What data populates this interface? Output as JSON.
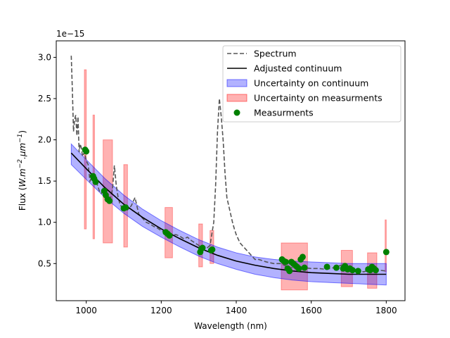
{
  "chart_data": {
    "type": "line",
    "xlabel": "Wavelength (nm)",
    "ylabel_main": "Flux (",
    "ylabel_sym": "W.m",
    "ylabel_sup1": "−2",
    "ylabel_mid": ".µm",
    "ylabel_sup2": "−1",
    "ylabel_end": ")",
    "offset_label": "1e−15",
    "xlim": [
      920,
      1850
    ],
    "ylim": [
      0.05,
      3.2
    ],
    "xticks": [
      1000,
      1200,
      1400,
      1600,
      1800
    ],
    "xtick_labels": [
      "1000",
      "1200",
      "1400",
      "1600",
      "1800"
    ],
    "yticks": [
      0.5,
      1.0,
      1.5,
      2.0,
      2.5,
      3.0
    ],
    "ytick_labels": [
      "0.5",
      "1.0",
      "1.5",
      "2.0",
      "2.5",
      "3.0"
    ],
    "legend": [
      {
        "label": "Spectrum",
        "kind": "dashed",
        "color": "#555555"
      },
      {
        "label": "Adjusted continuum",
        "kind": "line",
        "color": "#000000"
      },
      {
        "label": "Uncertainty on continuum",
        "kind": "patch",
        "color": "#0000ff"
      },
      {
        "label": "Uncertainty on measurments",
        "kind": "patch",
        "color": "#ff0000"
      },
      {
        "label": "Measurments",
        "kind": "marker",
        "color": "#008000"
      }
    ],
    "spectrum": {
      "x": [
        960,
        963,
        966,
        969,
        972,
        975,
        978,
        981,
        984,
        987,
        990,
        995,
        1000,
        1005,
        1010,
        1015,
        1020,
        1025,
        1030,
        1035,
        1040,
        1045,
        1050,
        1055,
        1060,
        1065,
        1070,
        1075,
        1080,
        1085,
        1090,
        1095,
        1100,
        1110,
        1120,
        1130,
        1140,
        1150,
        1160,
        1170,
        1180,
        1190,
        1200,
        1210,
        1220,
        1230,
        1240,
        1250,
        1260,
        1270,
        1280,
        1290,
        1300,
        1310,
        1320,
        1330,
        1340,
        1345,
        1350,
        1355,
        1360,
        1365,
        1370,
        1375,
        1380,
        1385,
        1390,
        1395,
        1400,
        1410,
        1420,
        1430,
        1440,
        1450,
        1460,
        1480,
        1500,
        1520,
        1540,
        1560,
        1580,
        1600,
        1620,
        1640,
        1660,
        1680,
        1700,
        1720,
        1740,
        1760,
        1780,
        1800
      ],
      "y": [
        3.02,
        2.6,
        2.1,
        2.25,
        2.3,
        2.05,
        2.28,
        1.85,
        1.95,
        1.9,
        1.8,
        1.85,
        1.75,
        1.7,
        1.5,
        1.55,
        1.5,
        1.5,
        1.45,
        1.38,
        1.35,
        1.4,
        1.3,
        1.28,
        1.26,
        1.3,
        1.4,
        1.69,
        1.45,
        1.3,
        1.22,
        1.18,
        1.17,
        1.15,
        1.2,
        1.3,
        1.1,
        1.05,
        1.0,
        0.98,
        0.95,
        0.93,
        0.9,
        0.88,
        0.86,
        0.85,
        0.85,
        0.83,
        0.8,
        0.82,
        0.78,
        0.75,
        0.72,
        0.7,
        0.68,
        0.72,
        1.0,
        1.45,
        2.1,
        2.5,
        2.28,
        2.0,
        1.6,
        1.3,
        1.2,
        1.1,
        1.0,
        0.92,
        0.85,
        0.75,
        0.7,
        0.65,
        0.6,
        0.55,
        0.55,
        0.52,
        0.5,
        0.5,
        0.45,
        0.45,
        0.45,
        0.44,
        0.44,
        0.43,
        0.45,
        0.48,
        0.46,
        0.42,
        0.4,
        0.43,
        0.42,
        0.41
      ]
    },
    "continuum": {
      "x": [
        960,
        1000,
        1050,
        1100,
        1150,
        1200,
        1250,
        1300,
        1350,
        1400,
        1450,
        1500,
        1550,
        1600,
        1650,
        1700,
        1750,
        1800
      ],
      "y": [
        1.84,
        1.65,
        1.42,
        1.22,
        1.06,
        0.92,
        0.8,
        0.69,
        0.6,
        0.53,
        0.48,
        0.44,
        0.41,
        0.39,
        0.38,
        0.37,
        0.37,
        0.37
      ],
      "lower": [
        1.7,
        1.52,
        1.3,
        1.11,
        0.95,
        0.82,
        0.7,
        0.59,
        0.5,
        0.43,
        0.37,
        0.33,
        0.3,
        0.28,
        0.27,
        0.26,
        0.25,
        0.24
      ],
      "upper": [
        1.95,
        1.76,
        1.53,
        1.33,
        1.16,
        1.02,
        0.9,
        0.79,
        0.7,
        0.63,
        0.58,
        0.55,
        0.53,
        0.52,
        0.51,
        0.5,
        0.5,
        0.5
      ]
    },
    "measurement_uncertainty": [
      {
        "x": [
          995,
          1000
        ],
        "lower": [
          0.92,
          0.92
        ],
        "upper": [
          2.85,
          2.85
        ]
      },
      {
        "x": [
          1018,
          1022
        ],
        "lower": [
          0.8,
          0.8
        ],
        "upper": [
          2.3,
          2.3
        ]
      },
      {
        "x": [
          1045,
          1070
        ],
        "lower": [
          0.75,
          0.75
        ],
        "upper": [
          2.0,
          2.0
        ]
      },
      {
        "x": [
          1100,
          1110
        ],
        "lower": [
          0.7,
          0.7
        ],
        "upper": [
          1.7,
          1.7
        ]
      },
      {
        "x": [
          1210,
          1230
        ],
        "lower": [
          0.57,
          0.57
        ],
        "upper": [
          1.18,
          1.18
        ]
      },
      {
        "x": [
          1300,
          1310
        ],
        "lower": [
          0.46,
          0.46
        ],
        "upper": [
          0.98,
          0.98
        ]
      },
      {
        "x": [
          1330,
          1340
        ],
        "lower": [
          0.5,
          0.5
        ],
        "upper": [
          0.9,
          0.9
        ]
      },
      {
        "x": [
          1520,
          1590
        ],
        "lower": [
          0.18,
          0.18
        ],
        "upper": [
          0.75,
          0.75
        ]
      },
      {
        "x": [
          1680,
          1710
        ],
        "lower": [
          0.22,
          0.22
        ],
        "upper": [
          0.66,
          0.66
        ]
      },
      {
        "x": [
          1750,
          1775
        ],
        "lower": [
          0.2,
          0.2
        ],
        "upper": [
          0.63,
          0.63
        ]
      },
      {
        "x": [
          1797,
          1800
        ],
        "lower": [
          0.4,
          0.4
        ],
        "upper": [
          1.03,
          1.03
        ]
      }
    ],
    "measurements": {
      "x": [
        997,
        1000,
        1018,
        1021,
        1025,
        1048,
        1052,
        1057,
        1062,
        1100,
        1105,
        1212,
        1217,
        1222,
        1304,
        1307,
        1310,
        1333,
        1336,
        1522,
        1527,
        1532,
        1537,
        1542,
        1547,
        1552,
        1557,
        1562,
        1567,
        1572,
        1577,
        1582,
        1642,
        1667,
        1685,
        1690,
        1697,
        1703,
        1710,
        1725,
        1752,
        1757,
        1762,
        1767,
        1772,
        1800
      ],
      "y": [
        1.88,
        1.86,
        1.56,
        1.53,
        1.49,
        1.38,
        1.33,
        1.28,
        1.26,
        1.17,
        1.18,
        0.88,
        0.86,
        0.84,
        0.64,
        0.68,
        0.69,
        0.66,
        0.67,
        0.55,
        0.53,
        0.52,
        0.44,
        0.41,
        0.52,
        0.5,
        0.48,
        0.46,
        0.44,
        0.55,
        0.58,
        0.45,
        0.46,
        0.45,
        0.44,
        0.47,
        0.43,
        0.44,
        0.42,
        0.41,
        0.43,
        0.42,
        0.46,
        0.44,
        0.42,
        0.64
      ]
    }
  }
}
